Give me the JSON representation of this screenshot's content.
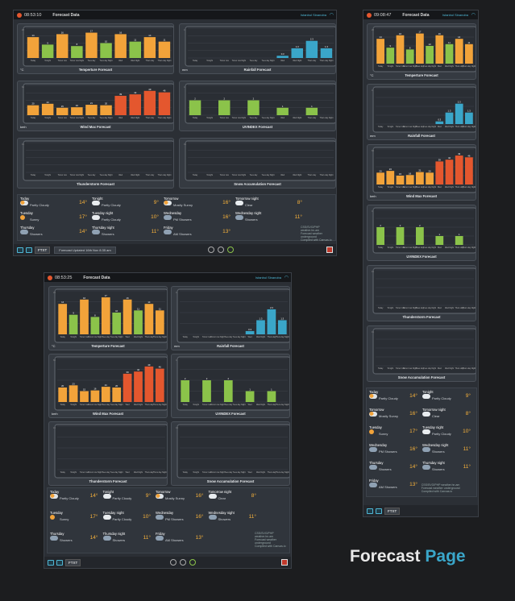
{
  "app": {
    "title": "Forecast Data",
    "location": "Istanbul Sinanoba"
  },
  "screens": {
    "top": {
      "time": "08:53:10"
    },
    "right": {
      "time": "09:08:47"
    },
    "bottom": {
      "time": "08:53:25"
    }
  },
  "footer": {
    "txt": "FTXT",
    "updated": "Forecast Updated 16th Nov 8:35 am"
  },
  "brand": {
    "a": "Forecast",
    "b": "Page"
  },
  "panels": {
    "temp": {
      "label": "Temperture Forecast",
      "unit": "°C"
    },
    "rain": {
      "label": "Rainfall Forecast",
      "unit": "mm"
    },
    "wind": {
      "label": "Wind Max Forecast",
      "unit": "kmh"
    },
    "uv": {
      "label": "UVINDEX Forecast",
      "unit": ""
    },
    "thunder": {
      "label": "Thunderstorm Forecast",
      "unit": ""
    },
    "snow": {
      "label": "Snow Accumulation Forecast",
      "unit": ""
    }
  },
  "chart_data": [
    {
      "id": "temp",
      "type": "bar",
      "categories": [
        "Today",
        "Tonight",
        "Tomorrow",
        "Tomorrow Night",
        "Tuesday",
        "Tuesday Night",
        "Wednesday",
        "Wednesday Night",
        "Thursday",
        "Thursday Night"
      ],
      "values": [
        14,
        9,
        16,
        8,
        17,
        10,
        16,
        11,
        14,
        11
      ],
      "colors": [
        "#f2a33a",
        "#8bc34a",
        "#f2a33a",
        "#8bc34a",
        "#f2a33a",
        "#8bc34a",
        "#f2a33a",
        "#8bc34a",
        "#f2a33a",
        "#f2a33a"
      ],
      "ylim": [
        0,
        20
      ]
    },
    {
      "id": "rain",
      "type": "bar",
      "categories": [
        "Today",
        "Tonight",
        "Tomorrow",
        "Tomorrow Night",
        "Tuesday",
        "Tuesday Night",
        "Wednesday",
        "Wednesday Night",
        "Thursday",
        "Thursday Night"
      ],
      "values": [
        0,
        0,
        0,
        0,
        0,
        0,
        0.3,
        1.3,
        2.3,
        1.3
      ],
      "colors": [
        "#3aa6c9"
      ],
      "ylim": [
        0,
        4
      ]
    },
    {
      "id": "wind",
      "type": "bar",
      "categories": [
        "Today",
        "Tonight",
        "Tomorrow",
        "Tomorrow Night",
        "Tuesday",
        "Tuesday Night",
        "Wednesday",
        "Wednesday Night",
        "Thursday",
        "Thursday Night"
      ],
      "values": [
        20,
        23,
        15,
        16,
        21,
        20,
        39,
        42,
        49,
        46
      ],
      "colors": [
        "#f2a33a",
        "#f2a33a",
        "#f2a33a",
        "#f2a33a",
        "#f2a33a",
        "#f2a33a",
        "#e4572e",
        "#e4572e",
        "#e4572e",
        "#e4572e"
      ],
      "ylim": [
        0,
        60
      ]
    },
    {
      "id": "uv",
      "type": "bar",
      "categories": [
        "Today",
        "Tonight",
        "Tomorrow",
        "Tomorrow Night",
        "Tuesday",
        "Tuesday Night",
        "Wednesday",
        "Wednesday Night",
        "Thursday",
        "Thursday Night"
      ],
      "values": [
        2,
        0,
        2,
        0,
        2,
        0,
        1,
        0,
        1,
        0
      ],
      "colors": [
        "#8bc34a"
      ],
      "ylim": [
        0,
        4
      ]
    },
    {
      "id": "thunder",
      "type": "bar",
      "categories": [
        "Today",
        "Tonight",
        "Tomorrow",
        "Tomorrow Night",
        "Tuesday",
        "Tuesday Night",
        "Wednesday",
        "Wednesday Night",
        "Thursday",
        "Thursday Night"
      ],
      "values": [
        0,
        0,
        0,
        0,
        0,
        0,
        0,
        0,
        0,
        0
      ],
      "colors": [
        "#888"
      ],
      "ylim": [
        0,
        15
      ]
    },
    {
      "id": "snow",
      "type": "bar",
      "categories": [
        "Today",
        "Tonight",
        "Tomorrow",
        "Tomorrow Night",
        "Tuesday",
        "Tuesday Night",
        "Wednesday",
        "Wednesday Night",
        "Thursday",
        "Thursday Night"
      ],
      "values": [
        0,
        0,
        0,
        0,
        0,
        0,
        0,
        0,
        0,
        0
      ],
      "colors": [
        "#888"
      ],
      "ylim": [
        0,
        15
      ]
    }
  ],
  "forecast": [
    {
      "day": "Today",
      "cond": "Partly Cloudy",
      "temp": "14°",
      "icon": "pc"
    },
    {
      "day": "Tonight",
      "cond": "Partly Cloudy",
      "temp": "9°",
      "icon": "c"
    },
    {
      "day": "Tomorrow",
      "cond": "Mostly Sunny",
      "temp": "16°",
      "icon": "pc"
    },
    {
      "day": "Tomorrow night",
      "cond": "Clear",
      "temp": "8°",
      "icon": "c"
    },
    {
      "day": "Tuesday",
      "cond": "Sunny",
      "temp": "17°",
      "icon": "sun"
    },
    {
      "day": "Tuesday night",
      "cond": "Partly Cloudy",
      "temp": "10°",
      "icon": "c"
    },
    {
      "day": "Wednesday",
      "cond": "PM Showers",
      "temp": "16°",
      "icon": "sh"
    },
    {
      "day": "Wednesday night",
      "cond": "Showers",
      "temp": "11°",
      "icon": "sh"
    },
    {
      "day": "Thursday",
      "cond": "Showers",
      "temp": "14°",
      "icon": "sh"
    },
    {
      "day": "Thursday night",
      "cond": "Showers",
      "temp": "11°",
      "icon": "sh"
    },
    {
      "day": "Friday",
      "cond": "AM Showers",
      "temp": "13°",
      "icon": "sh"
    }
  ],
  "credits": [
    "CSS/SVG/PHP weather.hn.am",
    "Forecast weather underground",
    "Compiled with Canvas.io"
  ]
}
